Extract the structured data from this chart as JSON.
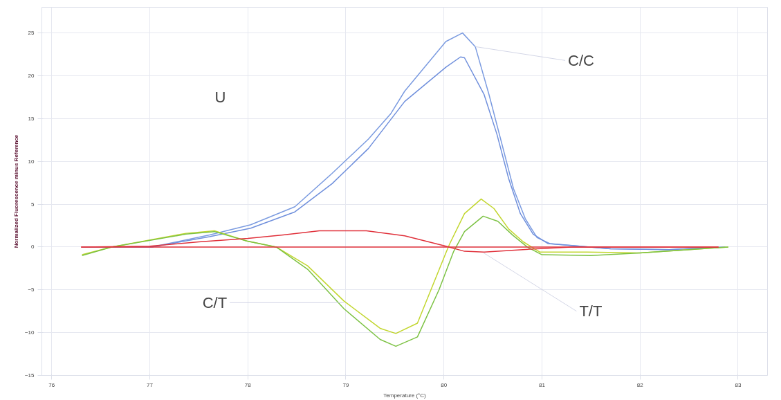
{
  "chart_data": {
    "type": "line",
    "xlabel": "Temperature (°C)",
    "ylabel": "Normalized Fluorescence minus Reference",
    "xlim": [
      75.9,
      83.3
    ],
    "ylim": [
      -15,
      28
    ],
    "xticks": [
      76,
      77,
      78,
      79,
      80,
      81,
      82,
      83
    ],
    "yticks": [
      -15,
      -10,
      -5,
      0,
      5,
      10,
      15,
      20,
      25
    ],
    "grid": true,
    "marker": "none",
    "line_style": "solid",
    "series": [
      {
        "color": "#7b9be0",
        "x": [
          76.31,
          77.02,
          77.61,
          78.03,
          78.48,
          78.86,
          79.23,
          79.46,
          79.6,
          80.02,
          80.19,
          80.32,
          80.46,
          80.59,
          80.71,
          80.83,
          80.95,
          81.08,
          81.7,
          82.3,
          82.87
        ],
        "values": [
          0,
          0,
          1.4,
          2.6,
          4.7,
          8.6,
          12.6,
          15.6,
          18.2,
          24.0,
          25.0,
          23.4,
          17.8,
          12.1,
          6.8,
          3.3,
          1.1,
          0.4,
          -0.2,
          -0.3,
          0
        ]
      },
      {
        "color": "#6f8fdc",
        "x": [
          76.31,
          77.02,
          77.61,
          78.03,
          78.48,
          78.86,
          79.23,
          79.6,
          80.02,
          80.17,
          80.21,
          80.41,
          80.54,
          80.66,
          80.78,
          80.91,
          81.06,
          81.7,
          82.3,
          82.87
        ],
        "values": [
          0,
          0,
          1.2,
          2.2,
          4.1,
          7.4,
          11.5,
          17.0,
          21.0,
          22.2,
          22.1,
          17.8,
          13.2,
          8.0,
          3.9,
          1.5,
          0.4,
          -0.2,
          -0.3,
          0
        ]
      },
      {
        "color": "#c2d62e",
        "x": [
          76.31,
          76.61,
          77.37,
          77.66,
          77.99,
          78.29,
          78.61,
          78.98,
          79.35,
          79.51,
          79.73,
          80.02,
          80.06,
          80.21,
          80.38,
          80.51,
          80.66,
          80.81,
          80.98,
          81.46,
          82.0,
          82.5,
          82.9
        ],
        "values": [
          -0.9,
          0,
          1.6,
          1.9,
          0.7,
          0,
          -2.2,
          -6.3,
          -9.5,
          -10.1,
          -8.9,
          -0.7,
          0.4,
          3.9,
          5.6,
          4.5,
          2.1,
          0.6,
          -0.6,
          -0.6,
          -0.7,
          -0.3,
          0
        ]
      },
      {
        "color": "#7cc243",
        "x": [
          76.31,
          76.61,
          77.37,
          77.66,
          77.99,
          78.29,
          78.61,
          78.98,
          79.35,
          79.51,
          79.73,
          79.95,
          80.1,
          80.21,
          80.4,
          80.55,
          80.7,
          80.85,
          81.0,
          81.5,
          82.0,
          82.5,
          82.9
        ],
        "values": [
          -1.0,
          0,
          1.5,
          1.8,
          0.7,
          0,
          -2.6,
          -7.2,
          -10.8,
          -11.6,
          -10.5,
          -5.0,
          -0.5,
          1.8,
          3.6,
          3.0,
          1.4,
          0,
          -0.9,
          -1.0,
          -0.7,
          -0.3,
          0
        ]
      },
      {
        "color": "#e0303a",
        "x": [
          76.3,
          82.8
        ],
        "values": [
          0,
          0
        ]
      },
      {
        "color": "#e0303a",
        "x": [
          76.3,
          77.0,
          77.5,
          78.0,
          78.36,
          78.73,
          79.21,
          79.6,
          80.02,
          80.21,
          80.41,
          80.95,
          81.3,
          82.8
        ],
        "values": [
          0,
          0.1,
          0.6,
          1.0,
          1.4,
          1.9,
          1.9,
          1.3,
          0.1,
          -0.5,
          -0.6,
          -0.2,
          0,
          0
        ]
      }
    ],
    "annotations": [
      "U",
      {
        "text": "C/C",
        "x": 80.32,
        "y": 23.4
      },
      {
        "text": "C/T",
        "x": 78.98,
        "y": -6.5
      },
      {
        "text": "T/T",
        "x": 80.4,
        "y": -0.65
      }
    ]
  }
}
